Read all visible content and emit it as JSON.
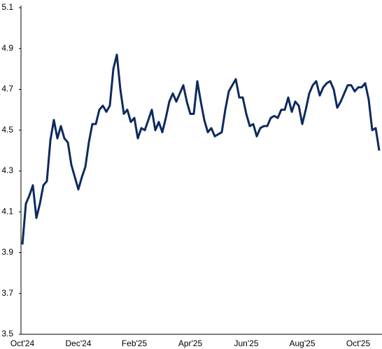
{
  "chart_data": {
    "type": "line",
    "categories": [
      "Oct'24",
      null,
      null,
      null,
      null,
      null,
      null,
      null,
      null,
      null,
      null,
      null,
      null,
      null,
      null,
      null,
      "Dec'24",
      null,
      null,
      null,
      null,
      null,
      null,
      null,
      null,
      null,
      null,
      null,
      null,
      null,
      null,
      null,
      "Feb'25",
      null,
      null,
      null,
      null,
      null,
      null,
      null,
      null,
      null,
      null,
      null,
      null,
      null,
      null,
      null,
      "Apr'25",
      null,
      null,
      null,
      null,
      null,
      null,
      null,
      null,
      null,
      null,
      null,
      null,
      null,
      null,
      null,
      "Jun'25",
      null,
      null,
      null,
      null,
      null,
      null,
      null,
      null,
      null,
      null,
      null,
      null,
      null,
      null,
      null,
      "Aug'25",
      null,
      null,
      null,
      null,
      null,
      null,
      null,
      null,
      null,
      null,
      null,
      null,
      null,
      null,
      null,
      "Oct'25",
      null,
      null,
      null,
      null,
      null,
      null
    ],
    "series": [
      {
        "color": "#0d2a5e",
        "values": [
          3.94,
          4.14,
          4.18,
          4.23,
          4.07,
          4.14,
          4.23,
          4.25,
          4.45,
          4.55,
          4.46,
          4.52,
          4.46,
          4.44,
          4.33,
          4.27,
          4.21,
          4.27,
          4.32,
          4.44,
          4.53,
          4.53,
          4.6,
          4.62,
          4.59,
          4.62,
          4.8,
          4.87,
          4.7,
          4.58,
          4.6,
          4.54,
          4.56,
          4.46,
          4.51,
          4.5,
          4.55,
          4.6,
          4.5,
          4.54,
          4.49,
          4.56,
          4.64,
          4.68,
          4.64,
          4.68,
          4.72,
          4.64,
          4.58,
          4.58,
          4.74,
          4.64,
          4.55,
          4.49,
          4.51,
          4.47,
          4.48,
          4.49,
          4.6,
          4.69,
          4.72,
          4.75,
          4.66,
          4.66,
          4.58,
          4.52,
          4.53,
          4.47,
          4.51,
          4.52,
          4.52,
          4.56,
          4.57,
          4.56,
          4.6,
          4.6,
          4.66,
          4.59,
          4.64,
          4.62,
          4.53,
          4.6,
          4.68,
          4.72,
          4.74,
          4.67,
          4.71,
          4.73,
          4.74,
          4.7,
          4.61,
          4.64,
          4.68,
          4.72,
          4.72,
          4.69,
          4.71,
          4.71,
          4.73,
          4.65,
          4.5,
          4.51,
          4.4
        ]
      }
    ],
    "ylim": [
      3.5,
      5.1
    ],
    "yticks": [
      3.5,
      3.7,
      3.9,
      4.1,
      4.3,
      4.5,
      4.7,
      4.9,
      5.1
    ],
    "grid": false
  }
}
